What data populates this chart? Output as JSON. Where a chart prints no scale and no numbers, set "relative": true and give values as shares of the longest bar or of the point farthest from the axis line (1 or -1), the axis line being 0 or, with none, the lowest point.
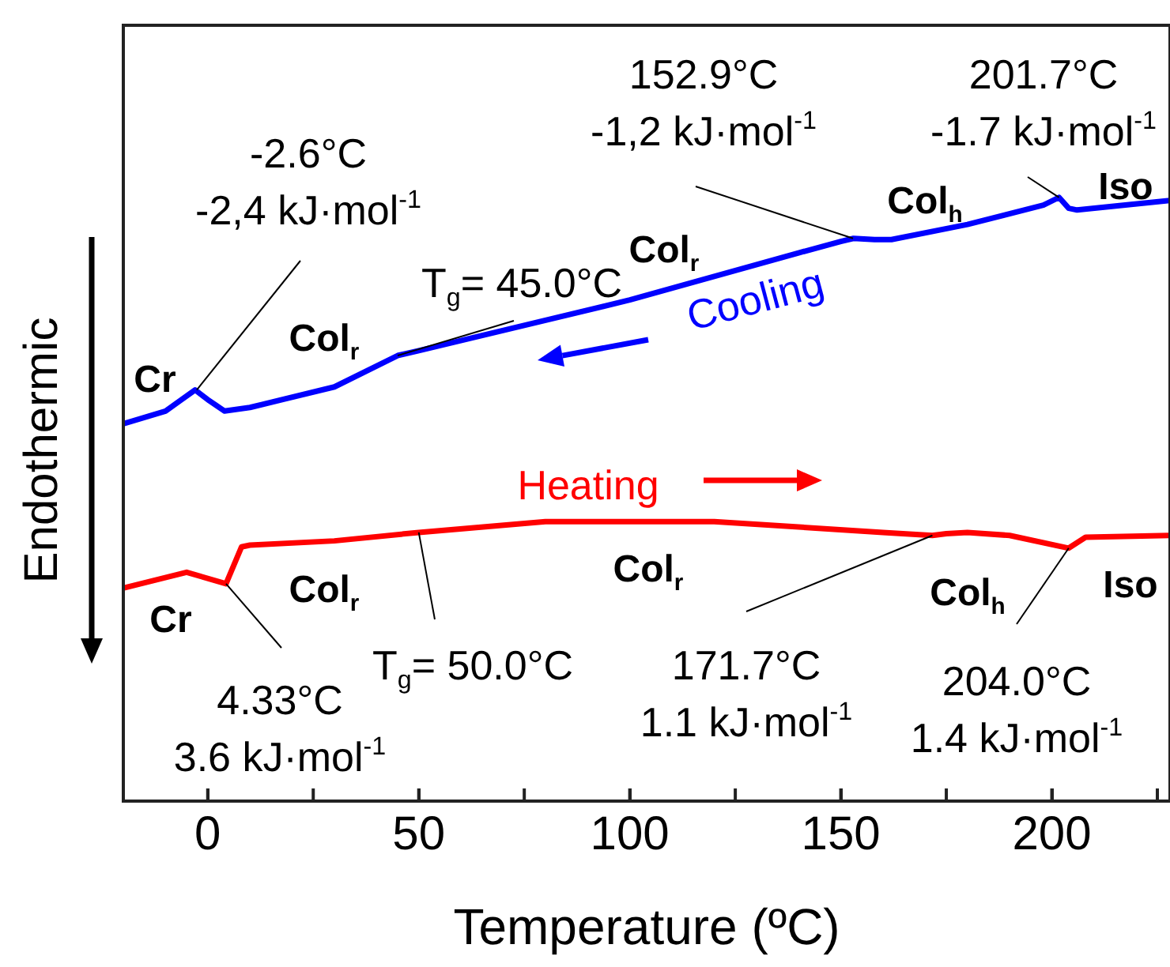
{
  "chart_data": {
    "type": "line",
    "relative": true,
    "xlabel": "Temperature (ºC)",
    "ylabel": "Endothermic",
    "xlim": [
      -20,
      228
    ],
    "xticks": [
      0,
      {
        "value": 25,
        "label": null
      },
      50,
      {
        "value": 75,
        "label": null
      },
      100,
      {
        "value": 125,
        "label": null
      },
      150,
      {
        "value": 175,
        "label": null
      },
      200,
      {
        "value": 225,
        "label": null
      }
    ],
    "grid": false,
    "marker": "none",
    "line_style": "solid",
    "series": [
      {
        "name": "Cooling",
        "color": "#0000ff",
        "x": [
          -20,
          -10,
          -3,
          0,
          4,
          10,
          30,
          45,
          50,
          100,
          140,
          150,
          153,
          158,
          162,
          180,
          198,
          201.7,
          204,
          206,
          228
        ],
        "values": [
          0.625,
          0.646,
          0.681,
          0.665,
          0.646,
          0.652,
          0.686,
          0.738,
          0.746,
          0.83,
          0.908,
          0.927,
          0.932,
          0.93,
          0.93,
          0.955,
          0.987,
          1,
          0.982,
          0.979,
          0.995
        ]
      },
      {
        "name": "Heating",
        "color": "#ff0000",
        "x": [
          -20,
          -5,
          4.33,
          8,
          10,
          30,
          50,
          80,
          120,
          160,
          171.7,
          175,
          180,
          190,
          204,
          208,
          228
        ],
        "values": [
          0.353,
          0.379,
          0.36,
          0.421,
          0.424,
          0.431,
          0.445,
          0.463,
          0.463,
          0.445,
          0.44,
          0.443,
          0.445,
          0.44,
          0.419,
          0.437,
          0.44
        ]
      }
    ],
    "annotations": [
      {
        "text": "-2.6°C\n-2,4 kJ·mol$^{-1}$",
        "x": -2.6,
        "y": 0.681
      },
      {
        "text": "T$_{g}$= 45.0°C",
        "x": 45,
        "y": 0.738
      },
      {
        "text": "152.9°C\n-1,2 kJ·mol$^{-1}$",
        "x": 152.9,
        "y": 0.932
      },
      {
        "text": "201.7°C\n-1.7 kJ·mol$^{-1}$",
        "x": 201.7,
        "y": 1
      },
      {
        "text": "4.33°C\n3.6 kJ·mol$^{-1}$",
        "x": 4.33,
        "y": 0.36
      },
      {
        "text": "T$_{g}$= 50.0°C",
        "x": 50,
        "y": 0.445
      },
      {
        "text": "171.7°C\n1.1 kJ·mol$^{-1}$",
        "x": 171.7,
        "y": 0.44
      },
      {
        "text": "204.0°C\n1.4 kJ·mol$^{-1}$",
        "x": 204,
        "y": 0.419
      },
      "Cr",
      "Col$_{r}$",
      "Col$_{r}$",
      "Col$_{h}$",
      "Iso",
      "Cr",
      "Col$_{r}$",
      "Col$_{r}$",
      "Col$_{h}$",
      "Iso"
    ]
  }
}
